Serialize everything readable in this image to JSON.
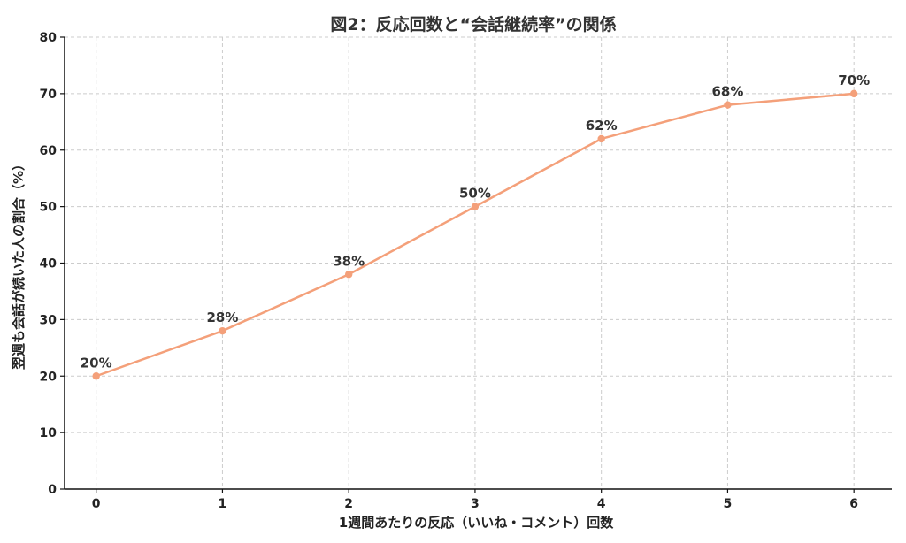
{
  "chart_data": {
    "type": "line",
    "title": "図2：反応回数と“会話継続率”の関係",
    "xlabel": "1週間あたりの反応（いいね・コメント）回数",
    "ylabel": "翌週も会話が続いた人の割合（%）",
    "x": [
      0,
      1,
      2,
      3,
      4,
      5,
      6
    ],
    "xlim": [
      -0.25,
      6.3
    ],
    "ylim": [
      0,
      80
    ],
    "yticks": [
      0,
      10,
      20,
      30,
      40,
      50,
      60,
      70,
      80
    ],
    "xticks": [
      0,
      1,
      2,
      3,
      4,
      5,
      6
    ],
    "grid": true,
    "series": [
      {
        "values": [
          20,
          28,
          38,
          50,
          62,
          68,
          70
        ],
        "data_labels": [
          "20%",
          "28%",
          "38%",
          "50%",
          "62%",
          "68%",
          "70%"
        ],
        "color": "#f4a07a"
      }
    ]
  }
}
